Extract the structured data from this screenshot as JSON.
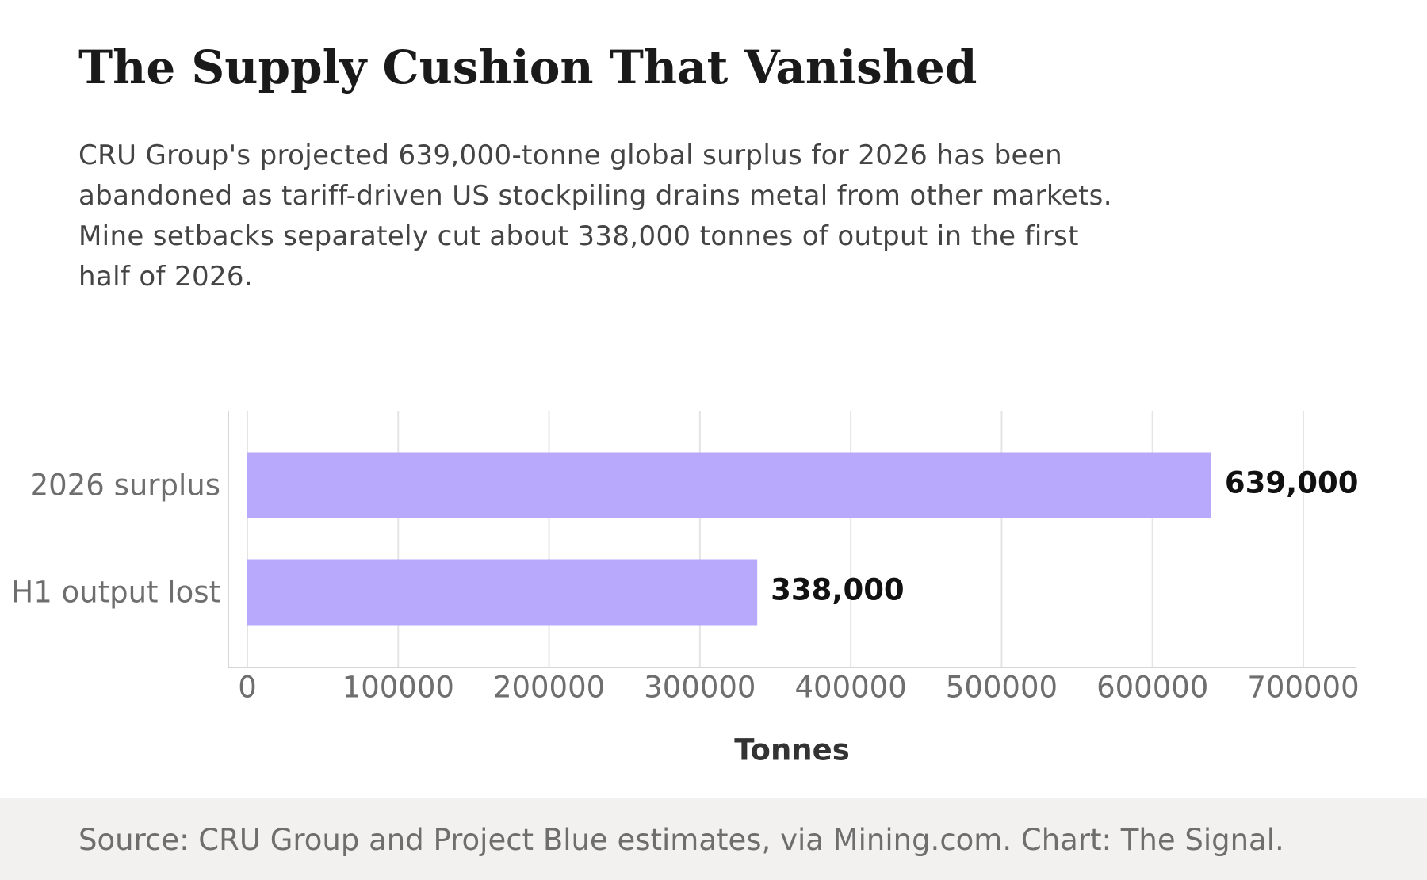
{
  "title": "The Supply Cushion That Vanished",
  "subtitle": "CRU Group's projected 639,000-tonne global surplus for 2026 has been abandoned as tariff-driven US stockpiling drains metal from other markets. Mine setbacks separately cut about 338,000 tonnes of output in the first half of 2026.",
  "source": "Source: CRU Group and Project Blue estimates, via Mining.com. Chart: The Signal.",
  "chart_data": {
    "type": "bar",
    "orientation": "horizontal",
    "categories": [
      "2026 surplus",
      "H1 output lost"
    ],
    "values": [
      639000,
      338000
    ],
    "value_labels": [
      "639,000",
      "338,000"
    ],
    "xlabel": "Tonnes",
    "ylabel": "",
    "xlim": [
      0,
      700000
    ],
    "xticks": [
      0,
      100000,
      200000,
      300000,
      400000,
      500000,
      600000,
      700000
    ],
    "xtick_labels": [
      "0",
      "100000",
      "200000",
      "300000",
      "400000",
      "500000",
      "600000",
      "700000"
    ],
    "grid": true,
    "colors": {
      "bar": "#b8a9fc",
      "grid": "#e4e4e4",
      "axis": "#d6d6d6",
      "tick_label": "#6e6e6e",
      "value_label": "#111111",
      "axis_title": "#333333"
    }
  }
}
